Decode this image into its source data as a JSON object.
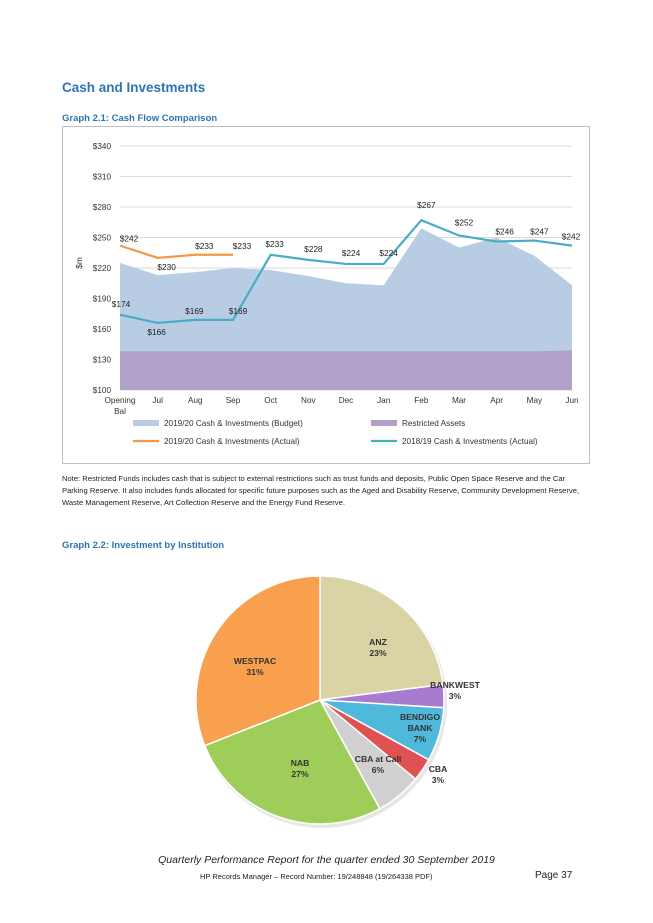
{
  "section_title": "Cash and Investments",
  "graph1_title": "Graph 2.1:  Cash Flow Comparison",
  "graph2_title": "Graph 2.2:  Investment by Institution",
  "note": "Note: Restricted Funds includes cash that is subject to external restrictions such as trust funds and deposits, Public Open Space Reserve and the Car Parking Reserve. It also includes funds allocated for specific future purposes such as the Aged and Disability Reserve, Community Development Reserve, Waste Management Reserve, Art Collection Reserve and the Energy Fund Reserve.",
  "footer": {
    "title": "Quarterly Performance Report for the quarter ended 30 September 2019",
    "record": "HP Records Manager – Record Number: 19/248848 (19/264338 PDF)",
    "page": "Page 37"
  },
  "colors": {
    "budget": "#b8cce4",
    "restricted": "#b1a0c7",
    "actual_2019_20": "#f79646",
    "actual_2018_19": "#4bacc6",
    "heading": "#2e75b6"
  },
  "chart_data": [
    {
      "type": "area",
      "ylabel": "$m",
      "ylim": [
        100,
        340
      ],
      "yticks": [
        "$100",
        "$130",
        "$160",
        "$190",
        "$220",
        "$250",
        "$280",
        "$310",
        "$340"
      ],
      "categories": [
        "Opening Bal",
        "Jul",
        "Aug",
        "Sep",
        "Oct",
        "Nov",
        "Dec",
        "Jan",
        "Feb",
        "Mar",
        "Apr",
        "May",
        "Jun"
      ],
      "legend_placement": "bottom",
      "grid": true,
      "series": [
        {
          "name": "2019/20 Cash & Investments (Budget)",
          "kind": "area",
          "values": [
            225,
            213,
            216,
            220,
            218,
            212,
            205,
            203,
            259,
            240,
            250,
            232,
            203
          ]
        },
        {
          "name": "Restricted Assets",
          "kind": "area",
          "values": [
            138,
            138,
            138,
            138,
            138,
            138,
            138,
            138,
            138,
            138,
            138,
            138,
            139
          ]
        },
        {
          "name": "2019/20 Cash & Investments (Actual)",
          "kind": "line",
          "values": [
            242,
            230,
            233,
            233,
            null,
            null,
            null,
            null,
            null,
            null,
            null,
            null,
            null
          ],
          "labels": [
            "$242",
            "$230",
            "$233",
            "$233"
          ]
        },
        {
          "name": "2018/19 Cash & Investments (Actual)",
          "kind": "line",
          "values": [
            174,
            166,
            169,
            169,
            233,
            228,
            224,
            224,
            267,
            252,
            246,
            247,
            242
          ],
          "labels": [
            "$174",
            "$166",
            "$169",
            "$169",
            "$233",
            "$228",
            "$224",
            "$224",
            "$267",
            "$252",
            "$246",
            "$247",
            "$242"
          ]
        }
      ]
    },
    {
      "type": "pie",
      "slices": [
        {
          "name": "ANZ",
          "value": 23,
          "label": "23%",
          "color": "#d9d3a6"
        },
        {
          "name": "BANKWEST",
          "value": 3,
          "label": "3%",
          "color": "#a77bd0"
        },
        {
          "name": "BENDIGO BANK",
          "value": 7,
          "label": "7%",
          "color": "#4fb9db"
        },
        {
          "name": "CBA",
          "value": 3,
          "label": "3%",
          "color": "#e05252"
        },
        {
          "name": "CBA at Call",
          "value": 6,
          "label": "6%",
          "color": "#d0d0d0"
        },
        {
          "name": "NAB",
          "value": 27,
          "label": "27%",
          "color": "#9fcd5a"
        },
        {
          "name": "WESTPAC",
          "value": 31,
          "label": "31%",
          "color": "#f9a04e"
        }
      ]
    }
  ]
}
